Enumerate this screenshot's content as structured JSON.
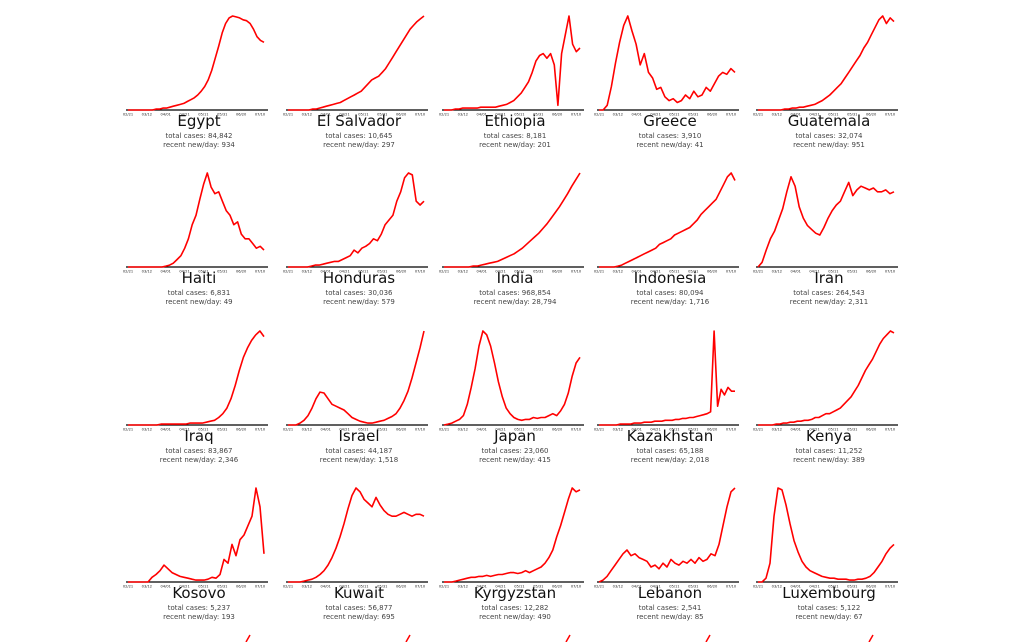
{
  "colors": {
    "line": "#ff0000",
    "axis": "#000000",
    "text": "#111111",
    "subtext": "#444444"
  },
  "labels": {
    "total": "total cases: ",
    "recent": "recent new/day: "
  },
  "chart_data": [
    {
      "type": "line",
      "country": "Egypt",
      "total_cases": "84,842",
      "recent_new_per_day": "934",
      "x_ticks": [
        "02/21",
        "03/12",
        "04/01",
        "04/21",
        "05/11",
        "05/31",
        "06/20",
        "07/10"
      ],
      "values": [
        0,
        0,
        0,
        0,
        0,
        0,
        0,
        0,
        1,
        1,
        2,
        2,
        3,
        4,
        5,
        6,
        7,
        9,
        11,
        13,
        16,
        20,
        25,
        32,
        42,
        55,
        68,
        82,
        92,
        98,
        100,
        99,
        98,
        96,
        95,
        92,
        86,
        78,
        74,
        72
      ]
    },
    {
      "type": "line",
      "country": "El Salvador",
      "total_cases": "10,645",
      "recent_new_per_day": "297",
      "x_ticks": [
        "02/21",
        "03/12",
        "04/01",
        "04/21",
        "05/11",
        "05/31",
        "06/20",
        "07/10"
      ],
      "values": [
        0,
        0,
        0,
        0,
        0,
        0,
        0,
        1,
        1,
        2,
        3,
        4,
        5,
        6,
        7,
        8,
        10,
        12,
        14,
        16,
        18,
        20,
        24,
        28,
        32,
        34,
        36,
        40,
        44,
        50,
        56,
        62,
        68,
        74,
        80,
        86,
        90,
        94,
        97,
        100
      ]
    },
    {
      "type": "line",
      "country": "Ethiopia",
      "total_cases": "8,181",
      "recent_new_per_day": "201",
      "x_ticks": [
        "02/21",
        "03/12",
        "04/01",
        "04/21",
        "05/11",
        "05/31",
        "06/20",
        "07/10"
      ],
      "values": [
        0,
        0,
        0,
        1,
        1,
        2,
        2,
        2,
        2,
        2,
        3,
        3,
        3,
        3,
        3,
        4,
        5,
        6,
        8,
        10,
        14,
        18,
        24,
        30,
        40,
        52,
        58,
        60,
        55,
        60,
        48,
        5,
        60,
        80,
        100,
        70,
        62,
        66
      ]
    },
    {
      "type": "line",
      "country": "Greece",
      "total_cases": "3,910",
      "recent_new_per_day": "41",
      "x_ticks": [
        "02/21",
        "03/12",
        "04/01",
        "04/21",
        "05/11",
        "05/31",
        "06/20",
        "07/10"
      ],
      "values": [
        0,
        0,
        5,
        25,
        50,
        72,
        90,
        100,
        84,
        70,
        48,
        60,
        40,
        34,
        22,
        24,
        14,
        10,
        12,
        8,
        10,
        16,
        12,
        20,
        14,
        16,
        24,
        20,
        28,
        36,
        40,
        38,
        44,
        40
      ]
    },
    {
      "type": "line",
      "country": "Guatemala",
      "total_cases": "32,074",
      "recent_new_per_day": "951",
      "x_ticks": [
        "02/21",
        "03/12",
        "04/01",
        "04/21",
        "05/11",
        "05/31",
        "06/20",
        "07/10"
      ],
      "values": [
        0,
        0,
        0,
        0,
        0,
        0,
        0,
        1,
        1,
        2,
        2,
        3,
        3,
        4,
        5,
        6,
        8,
        10,
        13,
        16,
        20,
        24,
        28,
        34,
        40,
        46,
        52,
        58,
        66,
        72,
        80,
        88,
        96,
        100,
        92,
        98,
        94
      ]
    },
    {
      "type": "line",
      "country": "Haiti",
      "total_cases": "6,831",
      "recent_new_per_day": "49",
      "x_ticks": [
        "02/21",
        "03/12",
        "04/01",
        "04/21",
        "05/11",
        "05/31",
        "06/20",
        "07/10"
      ],
      "values": [
        0,
        0,
        0,
        0,
        0,
        0,
        0,
        0,
        0,
        0,
        1,
        2,
        4,
        8,
        12,
        20,
        30,
        45,
        55,
        72,
        88,
        100,
        85,
        78,
        80,
        70,
        60,
        55,
        45,
        48,
        35,
        30,
        30,
        25,
        20,
        22,
        18
      ]
    },
    {
      "type": "line",
      "country": "Honduras",
      "total_cases": "30,036",
      "recent_new_per_day": "579",
      "x_ticks": [
        "02/21",
        "03/12",
        "04/01",
        "04/21",
        "05/11",
        "05/31",
        "06/20",
        "07/10"
      ],
      "values": [
        0,
        0,
        0,
        0,
        0,
        0,
        1,
        2,
        2,
        3,
        4,
        5,
        6,
        6,
        8,
        10,
        12,
        18,
        15,
        20,
        22,
        25,
        30,
        28,
        35,
        45,
        50,
        55,
        70,
        80,
        95,
        100,
        98,
        70,
        66,
        70
      ]
    },
    {
      "type": "line",
      "country": "India",
      "total_cases": "968,854",
      "recent_new_per_day": "28,794",
      "x_ticks": [
        "02/21",
        "03/12",
        "04/01",
        "04/21",
        "05/11",
        "05/31",
        "06/20",
        "07/10"
      ],
      "values": [
        0,
        0,
        0,
        0,
        0,
        0,
        0,
        1,
        1,
        2,
        3,
        4,
        5,
        6,
        8,
        10,
        12,
        14,
        17,
        20,
        24,
        28,
        32,
        36,
        41,
        46,
        52,
        58,
        64,
        71,
        78,
        86,
        93,
        100
      ]
    },
    {
      "type": "line",
      "country": "Indonesia",
      "total_cases": "80,094",
      "recent_new_per_day": "1,716",
      "x_ticks": [
        "02/21",
        "03/12",
        "04/01",
        "04/21",
        "05/11",
        "05/31",
        "06/20",
        "07/10"
      ],
      "values": [
        0,
        0,
        0,
        0,
        0,
        1,
        2,
        4,
        6,
        8,
        10,
        12,
        14,
        16,
        18,
        20,
        24,
        26,
        28,
        30,
        34,
        36,
        38,
        40,
        42,
        46,
        50,
        56,
        60,
        64,
        68,
        72,
        80,
        88,
        96,
        100,
        92
      ]
    },
    {
      "type": "line",
      "country": "Iran",
      "total_cases": "264,543",
      "recent_new_per_day": "2,311",
      "x_ticks": [
        "02/21",
        "03/12",
        "04/01",
        "04/21",
        "05/11",
        "05/31",
        "06/20",
        "07/10"
      ],
      "values": [
        0,
        5,
        18,
        30,
        38,
        50,
        62,
        80,
        96,
        86,
        64,
        52,
        44,
        40,
        36,
        34,
        42,
        52,
        60,
        66,
        70,
        80,
        90,
        76,
        82,
        86,
        84,
        82,
        84,
        80,
        80,
        82,
        78,
        80
      ]
    },
    {
      "type": "line",
      "country": "Iraq",
      "total_cases": "83,867",
      "recent_new_per_day": "2,346",
      "x_ticks": [
        "02/21",
        "03/12",
        "04/01",
        "04/21",
        "05/11",
        "05/31",
        "06/20",
        "07/10"
      ],
      "values": [
        0,
        0,
        0,
        0,
        0,
        0,
        0,
        0,
        1,
        1,
        1,
        1,
        1,
        1,
        1,
        2,
        2,
        2,
        2,
        3,
        4,
        5,
        8,
        12,
        18,
        28,
        42,
        58,
        72,
        82,
        90,
        96,
        100,
        94
      ]
    },
    {
      "type": "line",
      "country": "Israel",
      "total_cases": "44,187",
      "recent_new_per_day": "1,518",
      "x_ticks": [
        "02/21",
        "03/12",
        "04/01",
        "04/21",
        "05/11",
        "05/31",
        "06/20",
        "07/10"
      ],
      "values": [
        0,
        0,
        0,
        2,
        5,
        10,
        18,
        28,
        35,
        34,
        28,
        22,
        20,
        18,
        16,
        12,
        8,
        6,
        4,
        3,
        2,
        2,
        3,
        4,
        5,
        7,
        9,
        12,
        18,
        26,
        36,
        50,
        66,
        82,
        100
      ]
    },
    {
      "type": "line",
      "country": "Japan",
      "total_cases": "23,060",
      "recent_new_per_day": "415",
      "x_ticks": [
        "02/21",
        "03/12",
        "04/01",
        "04/21",
        "05/11",
        "05/31",
        "06/20",
        "07/10"
      ],
      "values": [
        0,
        1,
        2,
        4,
        6,
        10,
        22,
        40,
        60,
        84,
        100,
        96,
        84,
        66,
        46,
        30,
        18,
        12,
        8,
        6,
        5,
        6,
        6,
        8,
        7,
        8,
        8,
        10,
        12,
        10,
        15,
        22,
        34,
        52,
        66,
        72
      ]
    },
    {
      "type": "line",
      "country": "Kazakhstan",
      "total_cases": "65,188",
      "recent_new_per_day": "2,018",
      "x_ticks": [
        "02/21",
        "03/12",
        "04/01",
        "04/21",
        "05/11",
        "05/31",
        "06/20",
        "07/10"
      ],
      "values": [
        0,
        0,
        0,
        0,
        0,
        0,
        1,
        1,
        1,
        1,
        2,
        2,
        2,
        3,
        3,
        3,
        4,
        4,
        4,
        5,
        5,
        5,
        6,
        6,
        7,
        7,
        8,
        8,
        9,
        10,
        11,
        12,
        14,
        100,
        20,
        38,
        32,
        40,
        36,
        36
      ]
    },
    {
      "type": "line",
      "country": "Kenya",
      "total_cases": "11,252",
      "recent_new_per_day": "389",
      "x_ticks": [
        "02/21",
        "03/12",
        "04/01",
        "04/21",
        "05/11",
        "05/31",
        "06/20",
        "07/10"
      ],
      "values": [
        0,
        0,
        0,
        0,
        0,
        1,
        1,
        2,
        2,
        3,
        3,
        4,
        4,
        5,
        5,
        6,
        8,
        8,
        10,
        12,
        12,
        14,
        16,
        18,
        22,
        26,
        30,
        36,
        42,
        50,
        58,
        64,
        70,
        78,
        86,
        92,
        96,
        100,
        98
      ]
    },
    {
      "type": "line",
      "country": "Kosovo",
      "total_cases": "5,237",
      "recent_new_per_day": "193",
      "x_ticks": [
        "02/21",
        "03/12",
        "04/01",
        "04/21",
        "05/11",
        "05/31",
        "06/20",
        "07/10"
      ],
      "values": [
        0,
        0,
        0,
        0,
        0,
        0,
        5,
        8,
        12,
        18,
        14,
        10,
        8,
        6,
        5,
        4,
        3,
        2,
        2,
        2,
        3,
        5,
        4,
        8,
        24,
        20,
        40,
        28,
        45,
        50,
        60,
        70,
        100,
        80,
        30
      ]
    },
    {
      "type": "line",
      "country": "Kuwait",
      "total_cases": "56,877",
      "recent_new_per_day": "695",
      "x_ticks": [
        "02/21",
        "03/12",
        "04/01",
        "04/21",
        "05/11",
        "05/31",
        "06/20",
        "07/10"
      ],
      "values": [
        0,
        0,
        0,
        0,
        1,
        2,
        3,
        5,
        8,
        12,
        18,
        26,
        36,
        48,
        62,
        78,
        92,
        100,
        96,
        88,
        84,
        80,
        90,
        82,
        76,
        72,
        70,
        70,
        72,
        74,
        72,
        70,
        72,
        72,
        70
      ]
    },
    {
      "type": "line",
      "country": "Kyrgyzstan",
      "total_cases": "12,282",
      "recent_new_per_day": "490",
      "x_ticks": [
        "02/21",
        "03/12",
        "04/01",
        "04/21",
        "05/11",
        "05/31",
        "06/20",
        "07/10"
      ],
      "values": [
        0,
        0,
        0,
        1,
        2,
        3,
        4,
        5,
        5,
        6,
        6,
        7,
        6,
        7,
        8,
        8,
        9,
        10,
        10,
        9,
        10,
        12,
        10,
        12,
        14,
        16,
        20,
        26,
        34,
        48,
        60,
        74,
        88,
        100,
        96,
        98
      ]
    },
    {
      "type": "line",
      "country": "Lebanon",
      "total_cases": "2,541",
      "recent_new_per_day": "85",
      "x_ticks": [
        "02/21",
        "03/12",
        "04/01",
        "04/21",
        "05/11",
        "05/31",
        "06/20",
        "07/10"
      ],
      "values": [
        0,
        2,
        6,
        12,
        18,
        24,
        30,
        34,
        28,
        30,
        26,
        24,
        22,
        16,
        18,
        14,
        20,
        16,
        24,
        20,
        18,
        22,
        20,
        24,
        20,
        26,
        22,
        24,
        30,
        28,
        40,
        60,
        80,
        96,
        100
      ]
    },
    {
      "type": "line",
      "country": "Luxembourg",
      "total_cases": "5,122",
      "recent_new_per_day": "67",
      "x_ticks": [
        "02/21",
        "03/12",
        "04/01",
        "04/21",
        "05/11",
        "05/31",
        "06/20",
        "07/10"
      ],
      "values": [
        0,
        0,
        4,
        20,
        70,
        100,
        98,
        82,
        62,
        44,
        32,
        22,
        16,
        12,
        10,
        8,
        6,
        5,
        4,
        4,
        3,
        3,
        3,
        2,
        2,
        3,
        3,
        4,
        6,
        10,
        16,
        22,
        30,
        36,
        40
      ]
    }
  ]
}
